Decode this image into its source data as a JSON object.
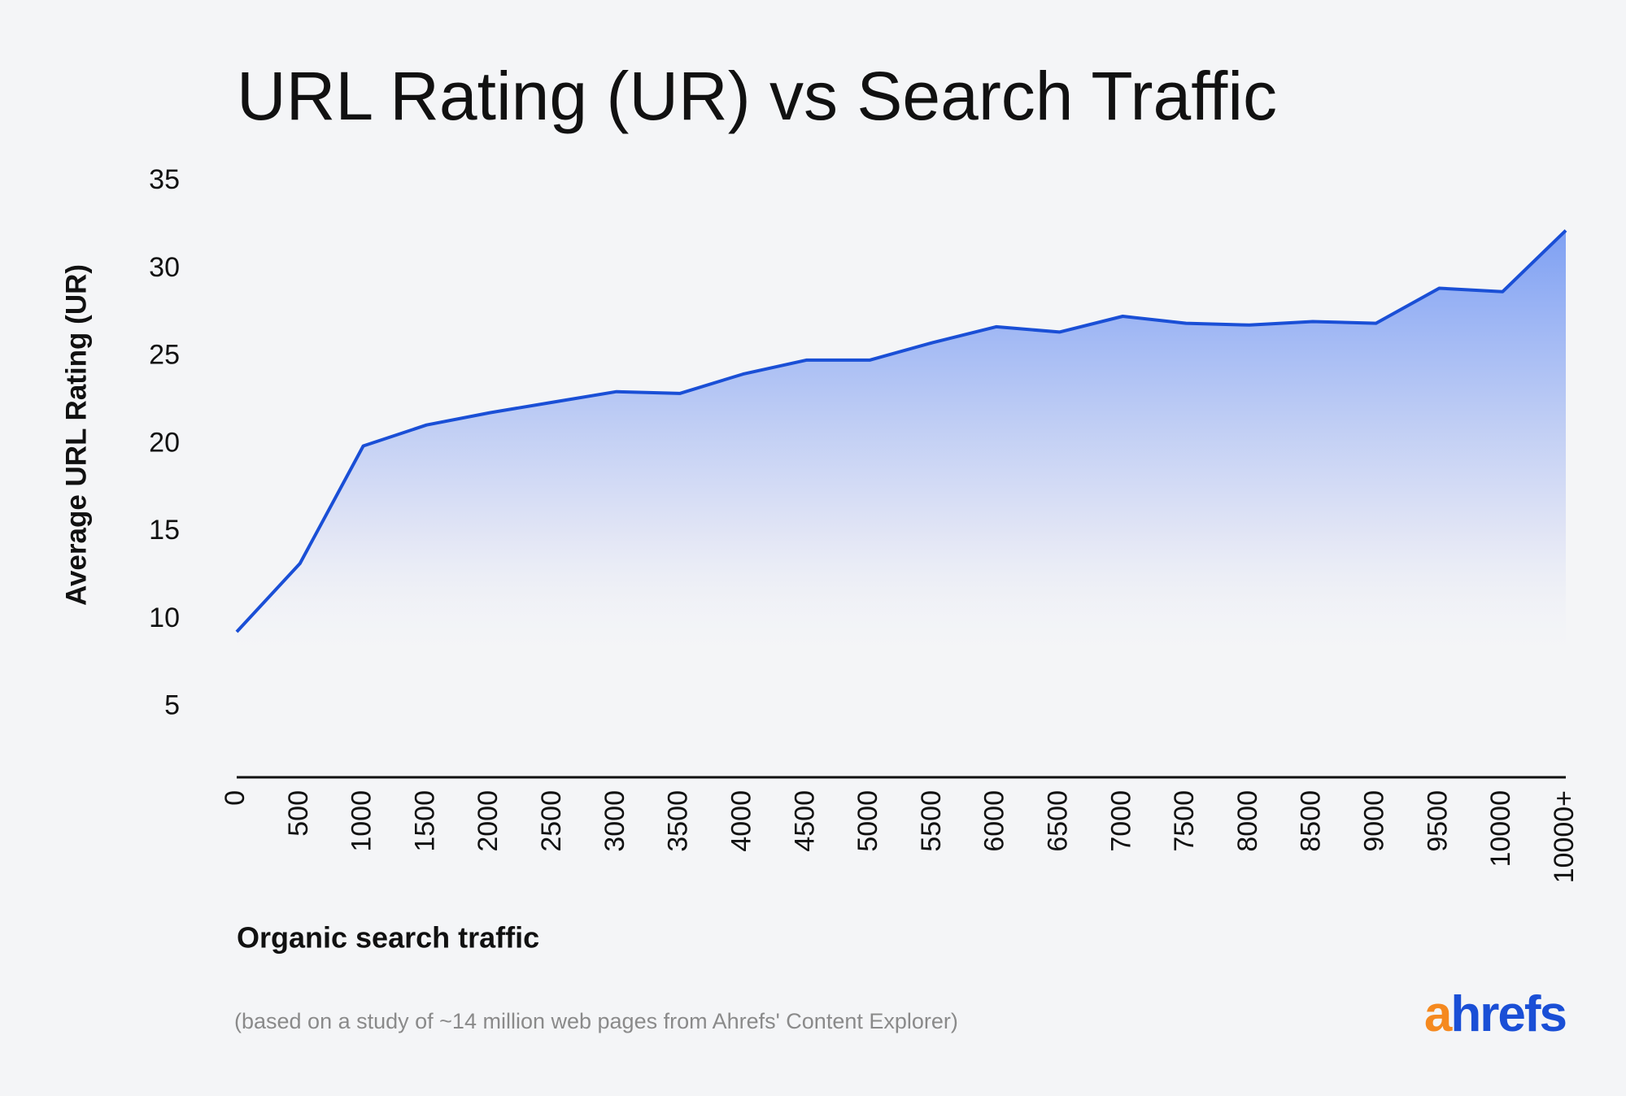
{
  "chart_data": {
    "type": "area",
    "title": "URL Rating (UR) vs Search Traffic",
    "y_label": "Average URL Rating (UR)",
    "x_label": "Organic search traffic",
    "note": "(based on a study of ~14 million web pages from Ahrefs' Content Explorer)",
    "categories": [
      "0",
      "500",
      "1000",
      "1500",
      "2000",
      "2500",
      "3000",
      "3500",
      "4000",
      "4500",
      "5000",
      "5500",
      "6000",
      "6500",
      "7000",
      "7500",
      "8000",
      "8500",
      "9000",
      "9500",
      "10000",
      "10000+"
    ],
    "values": [
      9.3,
      13.2,
      19.9,
      21.1,
      21.8,
      22.4,
      23.0,
      22.9,
      24.0,
      24.8,
      24.8,
      25.8,
      26.7,
      26.4,
      27.3,
      26.9,
      26.8,
      27.0,
      26.9,
      28.9,
      28.7,
      32.2
    ],
    "color": "#1a4fd6",
    "ylim": [
      1,
      35
    ],
    "yticks": [
      5,
      10,
      15,
      20,
      25,
      30,
      35
    ],
    "grid": false
  },
  "brand": {
    "accent": "a",
    "rest": "hrefs"
  }
}
